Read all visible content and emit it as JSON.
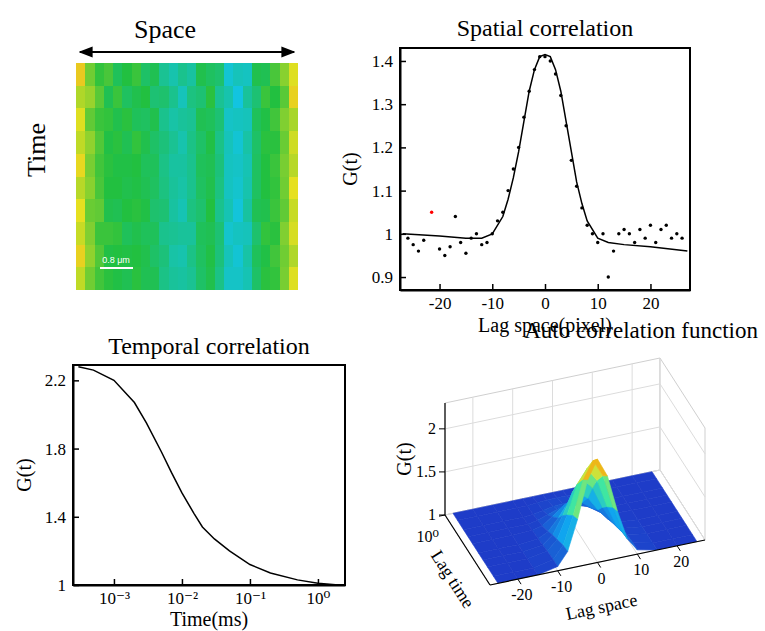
{
  "chart_data": [
    {
      "type": "heatmap",
      "xlabel": "Space",
      "ylabel": "Time",
      "annotations": [
        "0.8 μm"
      ],
      "zlim": [
        0,
        1
      ],
      "cells": [
        [
          0.78,
          0.6,
          0.52,
          0.55,
          0.46,
          0.5,
          0.53,
          0.44,
          0.47,
          0.37,
          0.33,
          0.38,
          0.35,
          0.48,
          0.45,
          0.43,
          0.27,
          0.31,
          0.3,
          0.48,
          0.47,
          0.55,
          0.63,
          0.74
        ],
        [
          0.68,
          0.65,
          0.57,
          0.47,
          0.53,
          0.45,
          0.48,
          0.5,
          0.42,
          0.43,
          0.38,
          0.31,
          0.4,
          0.42,
          0.51,
          0.37,
          0.33,
          0.25,
          0.36,
          0.42,
          0.53,
          0.5,
          0.57,
          0.77
        ],
        [
          0.74,
          0.58,
          0.53,
          0.52,
          0.48,
          0.51,
          0.46,
          0.45,
          0.48,
          0.38,
          0.34,
          0.36,
          0.37,
          0.47,
          0.46,
          0.42,
          0.29,
          0.3,
          0.31,
          0.46,
          0.49,
          0.54,
          0.62,
          0.67
        ],
        [
          0.7,
          0.64,
          0.56,
          0.49,
          0.51,
          0.47,
          0.52,
          0.48,
          0.44,
          0.41,
          0.37,
          0.33,
          0.39,
          0.44,
          0.49,
          0.39,
          0.31,
          0.27,
          0.34,
          0.44,
          0.51,
          0.51,
          0.59,
          0.72
        ],
        [
          0.76,
          0.61,
          0.54,
          0.51,
          0.49,
          0.49,
          0.5,
          0.46,
          0.46,
          0.39,
          0.35,
          0.35,
          0.38,
          0.46,
          0.47,
          0.41,
          0.3,
          0.29,
          0.32,
          0.45,
          0.5,
          0.53,
          0.61,
          0.69
        ],
        [
          0.69,
          0.63,
          0.55,
          0.5,
          0.5,
          0.48,
          0.49,
          0.47,
          0.45,
          0.4,
          0.36,
          0.34,
          0.38,
          0.45,
          0.48,
          0.4,
          0.3,
          0.28,
          0.33,
          0.45,
          0.5,
          0.52,
          0.6,
          0.75
        ],
        [
          0.75,
          0.59,
          0.58,
          0.48,
          0.47,
          0.5,
          0.51,
          0.49,
          0.43,
          0.42,
          0.35,
          0.32,
          0.4,
          0.43,
          0.5,
          0.38,
          0.32,
          0.26,
          0.35,
          0.47,
          0.48,
          0.53,
          0.58,
          0.71
        ],
        [
          0.71,
          0.62,
          0.53,
          0.53,
          0.52,
          0.46,
          0.48,
          0.46,
          0.46,
          0.38,
          0.37,
          0.36,
          0.36,
          0.46,
          0.47,
          0.42,
          0.28,
          0.3,
          0.31,
          0.43,
          0.52,
          0.51,
          0.62,
          0.73
        ],
        [
          0.77,
          0.64,
          0.56,
          0.49,
          0.5,
          0.49,
          0.5,
          0.48,
          0.44,
          0.41,
          0.34,
          0.33,
          0.39,
          0.45,
          0.49,
          0.41,
          0.31,
          0.27,
          0.34,
          0.46,
          0.49,
          0.54,
          0.6,
          0.68
        ],
        [
          0.7,
          0.6,
          0.54,
          0.51,
          0.49,
          0.47,
          0.51,
          0.47,
          0.47,
          0.39,
          0.36,
          0.35,
          0.37,
          0.44,
          0.48,
          0.39,
          0.29,
          0.29,
          0.32,
          0.44,
          0.51,
          0.52,
          0.61,
          0.74
        ]
      ]
    },
    {
      "type": "scatter",
      "title": "Spatial correlation",
      "xlabel": "Lag space(pixel)",
      "ylabel": "G(t)",
      "xlim": [
        -27.5,
        27.5
      ],
      "ylim": [
        0.87,
        1.43
      ],
      "xticks": [
        -20,
        -10,
        0,
        10,
        20
      ],
      "yticks": [
        0.9,
        1,
        1.1,
        1.2,
        1.3,
        1.4
      ],
      "series": [
        {
          "type": "scatter",
          "color": "#000000",
          "marker": "dot",
          "x": [
            -26,
            -25,
            -24,
            -23,
            -20,
            -19,
            -18,
            -17,
            -16,
            -15,
            -14,
            -13,
            -12,
            -11,
            -10,
            -9,
            -8,
            -7,
            -6,
            -5,
            -4,
            -3,
            -2,
            -1,
            0,
            1,
            2,
            3,
            4,
            5,
            6,
            7,
            8,
            9,
            10,
            11,
            12,
            13,
            14,
            15,
            16,
            17,
            18,
            19,
            20,
            21,
            22,
            23,
            24,
            25,
            26
          ],
          "values": [
            0.99,
            0.975,
            0.96,
            0.985,
            0.965,
            0.95,
            0.97,
            1.04,
            0.98,
            0.955,
            0.99,
            1.0,
            0.975,
            0.98,
            1.0,
            1.03,
            1.05,
            1.1,
            1.15,
            1.2,
            1.27,
            1.33,
            1.38,
            1.41,
            1.41,
            1.4,
            1.37,
            1.32,
            1.25,
            1.17,
            1.11,
            1.06,
            1.02,
            1.0,
            0.98,
            1.0,
            0.9,
            0.96,
            1.0,
            1.01,
            1.0,
            0.98,
            1.01,
            0.99,
            1.02,
            0.98,
            1.01,
            1.02,
            0.99,
            1.0,
            0.99
          ]
        },
        {
          "type": "scatter",
          "color": "#ff0000",
          "marker": "dot",
          "x": [
            -21.5
          ],
          "values": [
            1.05
          ]
        },
        {
          "type": "line",
          "color": "#000000",
          "x": [
            -27,
            -20,
            -15,
            -12,
            -10,
            -8,
            -7,
            -6,
            -5,
            -4,
            -3,
            -2,
            -1,
            0,
            1,
            2,
            3,
            4,
            5,
            6,
            7,
            8,
            10,
            12,
            15,
            20,
            27
          ],
          "values": [
            1.0,
            0.995,
            0.99,
            0.99,
            1.0,
            1.04,
            1.08,
            1.13,
            1.19,
            1.26,
            1.33,
            1.38,
            1.41,
            1.415,
            1.41,
            1.38,
            1.33,
            1.26,
            1.19,
            1.12,
            1.07,
            1.03,
            0.99,
            0.98,
            0.975,
            0.97,
            0.96
          ]
        }
      ]
    },
    {
      "type": "line",
      "title": "Temporal correlation",
      "xlabel": "Time(ms)",
      "ylabel": "G(t)",
      "log": "x",
      "xlim": [
        0.00025,
        2.5
      ],
      "ylim": [
        1,
        2.29
      ],
      "xticks": [
        {
          "value": 0.001,
          "label": "10⁻³"
        },
        {
          "value": 0.01,
          "label": "10⁻²"
        },
        {
          "value": 0.1,
          "label": "10⁻¹"
        },
        {
          "value": 1,
          "label": "10⁰"
        }
      ],
      "yticks": [
        1,
        1.4,
        1.8,
        2.2
      ],
      "series": [
        {
          "color": "#000000",
          "x": [
            0.0003,
            0.0005,
            0.001,
            0.002,
            0.003,
            0.005,
            0.007,
            0.01,
            0.015,
            0.02,
            0.03,
            0.05,
            0.1,
            0.2,
            0.5,
            1,
            2
          ],
          "values": [
            2.28,
            2.26,
            2.2,
            2.07,
            1.95,
            1.78,
            1.66,
            1.54,
            1.42,
            1.34,
            1.27,
            1.2,
            1.12,
            1.07,
            1.03,
            1.01,
            1.0
          ]
        }
      ]
    },
    {
      "type": "surface",
      "title": "Auto correlation function",
      "xlabel": "Lag space",
      "ylabel": "Lag time",
      "zlabel": "G(t)",
      "log": "y",
      "xlim": [
        -27,
        27
      ],
      "ylim": [
        0.001,
        1
      ],
      "zlim": [
        1,
        2.3
      ],
      "xticks": [
        -20,
        -10,
        0,
        10,
        20
      ],
      "yticks": [
        {
          "value": 1,
          "label": "10⁰"
        }
      ],
      "zticks": [
        1,
        1.5,
        2
      ],
      "x": [
        -25,
        -20,
        -15,
        -10,
        -7.5,
        -5,
        -2.5,
        0,
        2.5,
        5,
        7.5,
        10,
        15,
        20,
        25
      ],
      "y": [
        0.001,
        0.002,
        0.005,
        0.01,
        0.02,
        0.05,
        0.1,
        0.2,
        0.5,
        1
      ],
      "z": [
        [
          1,
          1,
          1,
          1.05,
          1.2,
          1.55,
          1.98,
          2.2,
          1.98,
          1.55,
          1.2,
          1.05,
          1,
          1,
          1
        ],
        [
          1,
          1,
          1,
          1.05,
          1.19,
          1.51,
          1.9,
          2.1,
          1.9,
          1.51,
          1.19,
          1.05,
          1,
          1,
          1
        ],
        [
          1,
          1,
          1,
          1.04,
          1.15,
          1.41,
          1.74,
          1.9,
          1.74,
          1.41,
          1.15,
          1.04,
          1,
          1,
          1
        ],
        [
          1,
          1,
          1,
          1.03,
          1.12,
          1.32,
          1.57,
          1.7,
          1.57,
          1.32,
          1.12,
          1.03,
          1,
          1,
          1
        ],
        [
          1,
          1,
          1,
          1.02,
          1.08,
          1.21,
          1.37,
          1.45,
          1.37,
          1.21,
          1.08,
          1.02,
          1,
          1,
          1
        ],
        [
          1,
          1,
          1,
          1.01,
          1.04,
          1.12,
          1.21,
          1.25,
          1.21,
          1.12,
          1.04,
          1.01,
          1,
          1,
          1
        ],
        [
          1,
          1,
          1,
          1,
          1.02,
          1.06,
          1.1,
          1.12,
          1.1,
          1.06,
          1.02,
          1,
          1,
          1,
          1
        ],
        [
          1,
          1,
          1,
          1,
          1.01,
          1.03,
          1.05,
          1.06,
          1.05,
          1.03,
          1.01,
          1,
          1,
          1,
          1
        ],
        [
          1,
          1,
          1,
          1,
          1,
          1.01,
          1.02,
          1.02,
          1.02,
          1.01,
          1,
          1,
          1,
          1,
          1
        ],
        [
          1,
          1,
          1,
          1,
          1,
          1,
          1,
          1,
          1,
          1,
          1,
          1,
          1,
          1,
          1
        ]
      ]
    }
  ]
}
